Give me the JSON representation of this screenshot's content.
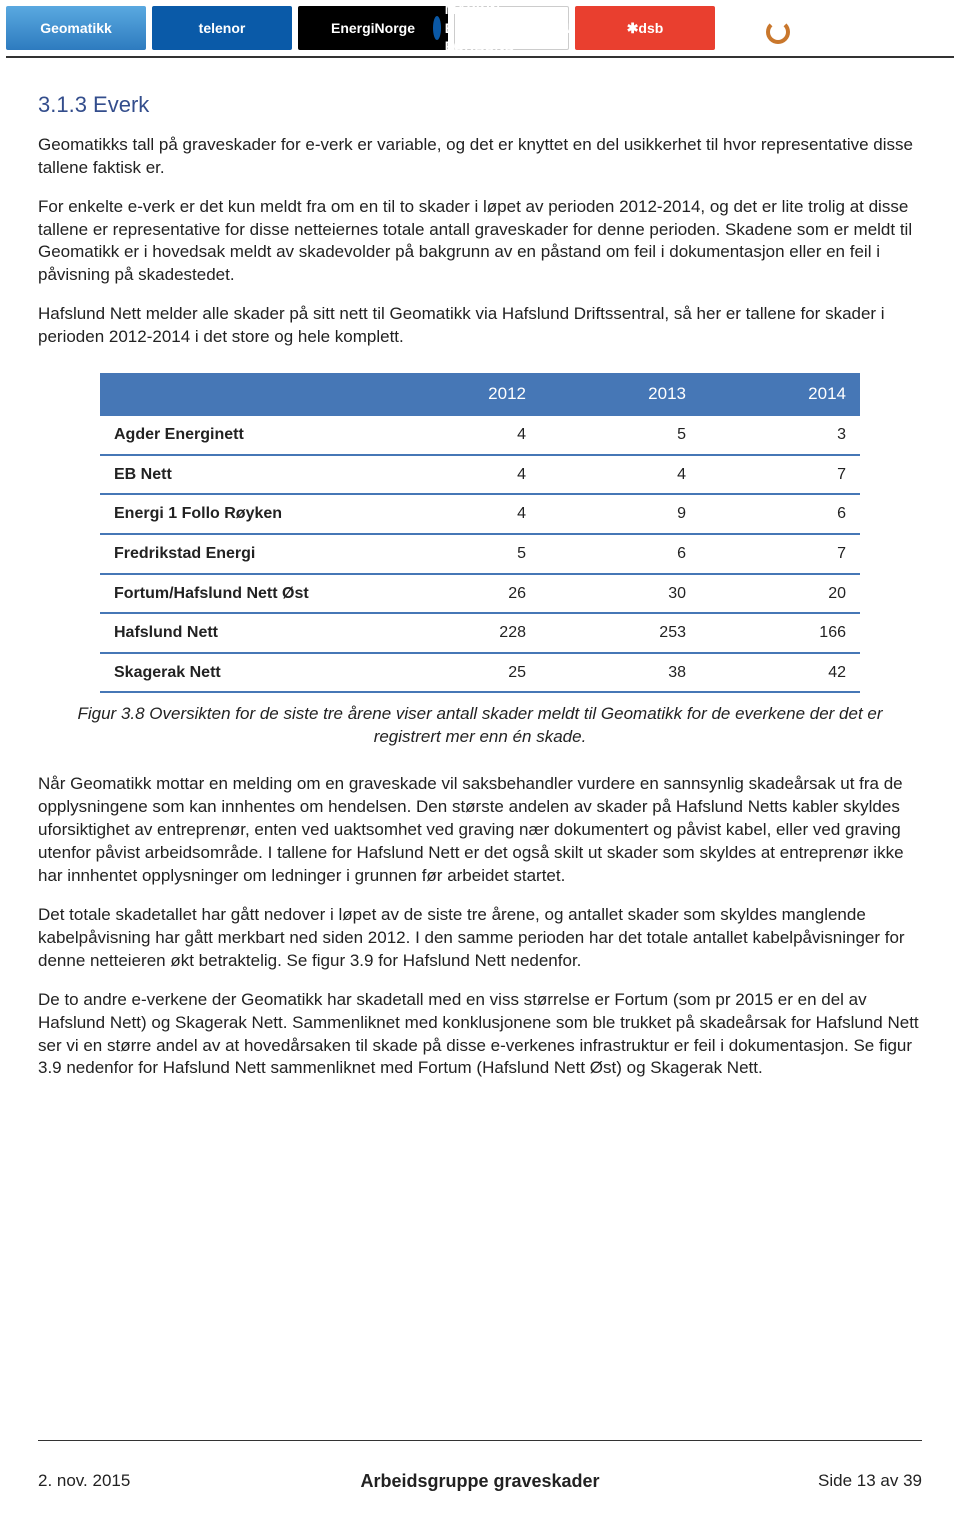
{
  "logos": {
    "geomatikk": "Geomatikk",
    "telenor": "telenor",
    "energinorge": "EnergiNorge",
    "mef": "MASKIN-ENTREPRENØRENES FORBUND",
    "dsb": "dsb",
    "finans": "Finans Norge"
  },
  "heading": "3.1.3 Everk",
  "p1": "Geomatikks tall på graveskader for e-verk er variable, og det er knyttet en del usikkerhet til hvor representative disse tallene faktisk er.",
  "p2": "For enkelte e-verk er det kun meldt fra om en til to skader i løpet av perioden 2012-2014, og det er lite trolig at disse tallene er representative for disse netteiernes totale antall graveskader for denne perioden. Skadene som er meldt til Geomatikk er i hovedsak meldt av skadevolder på bakgrunn av en påstand om feil i dokumentasjon eller en feil i påvisning på skadestedet.",
  "p3": "Hafslund Nett melder alle skader på sitt nett til Geomatikk via Hafslund Driftssentral, så her er tallene for skader i perioden 2012-2014 i det store og hele komplett.",
  "table": {
    "header_label": "",
    "columns": [
      "2012",
      "2013",
      "2014"
    ],
    "rows": [
      {
        "label": "Agder Energinett",
        "v": [
          "4",
          "5",
          "3"
        ]
      },
      {
        "label": "EB Nett",
        "v": [
          "4",
          "4",
          "7"
        ]
      },
      {
        "label": "Energi 1 Follo Røyken",
        "v": [
          "4",
          "9",
          "6"
        ]
      },
      {
        "label": "Fredrikstad Energi",
        "v": [
          "5",
          "6",
          "7"
        ]
      },
      {
        "label": "Fortum/Hafslund Nett Øst",
        "v": [
          "26",
          "30",
          "20"
        ]
      },
      {
        "label": "Hafslund Nett",
        "v": [
          "228",
          "253",
          "166"
        ]
      },
      {
        "label": "Skagerak Nett",
        "v": [
          "25",
          "38",
          "42"
        ]
      }
    ],
    "header_bg": "#4677b6",
    "header_fg": "#ffffff",
    "row_border": "#4677b6"
  },
  "figcaption": "Figur 3.8 Oversikten for de siste tre årene viser antall skader meldt til Geomatikk for de everkene der det er registrert mer enn én skade.",
  "p4": "Når Geomatikk mottar en melding om en graveskade vil saksbehandler vurdere en sannsynlig skadeårsak ut fra de opplysningene som kan innhentes om hendelsen. Den største andelen av skader på Hafslund Netts kabler skyldes uforsiktighet av entreprenør, enten ved uaktsomhet ved graving nær dokumentert og påvist kabel, eller ved graving utenfor påvist arbeidsområde. I tallene for Hafslund Nett er det også skilt ut skader som skyldes at entreprenør ikke har innhentet opplysninger om ledninger i grunnen før arbeidet startet.",
  "p5": "Det totale skadetallet har gått nedover i løpet av de siste tre årene, og antallet skader som skyldes manglende kabelpåvisning har gått merkbart ned siden 2012. I den samme perioden har det totale antallet kabelpåvisninger for denne netteieren økt betraktelig. Se figur 3.9 for Hafslund Nett nedenfor.",
  "p6": "De to andre e-verkene der Geomatikk har skadetall med en viss størrelse er Fortum (som pr 2015 er en del av Hafslund Nett) og Skagerak Nett. Sammenliknet med konklusjonene som ble trukket på skadeårsak for Hafslund Nett ser vi en større andel av at hovedårsaken til skade på disse e-verkenes infrastruktur er feil i dokumentasjon. Se figur 3.9 nedenfor for Hafslund Nett sammenliknet med Fortum (Hafslund Nett Øst) og Skagerak Nett.",
  "footer": {
    "date": "2. nov. 2015",
    "center": "Arbeidsgruppe graveskader",
    "page": "Side 13 av 39"
  }
}
